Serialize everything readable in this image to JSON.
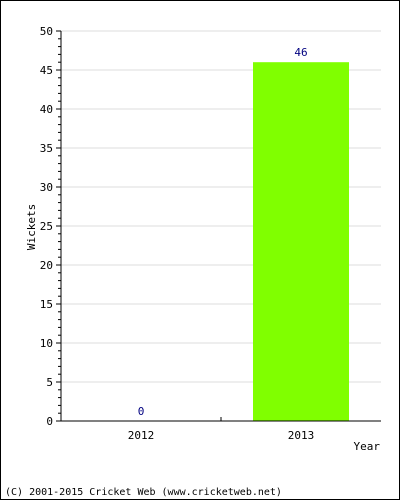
{
  "chart_data": {
    "type": "bar",
    "categories": [
      "2012",
      "2013"
    ],
    "values": [
      0,
      46
    ],
    "data_labels": [
      "0",
      "46"
    ],
    "xlabel": "Year",
    "ylabel": "Wickets",
    "ylim": [
      0,
      50
    ],
    "yticks": [
      "0",
      "5",
      "10",
      "15",
      "20",
      "25",
      "30",
      "35",
      "40",
      "45",
      "50"
    ],
    "grid": true,
    "bar_color": "#80ff00",
    "label_color": "#000080",
    "grid_color": "#dddddd"
  },
  "footer": {
    "credit": "(C) 2001-2015 Cricket Web (www.cricketweb.net)"
  }
}
